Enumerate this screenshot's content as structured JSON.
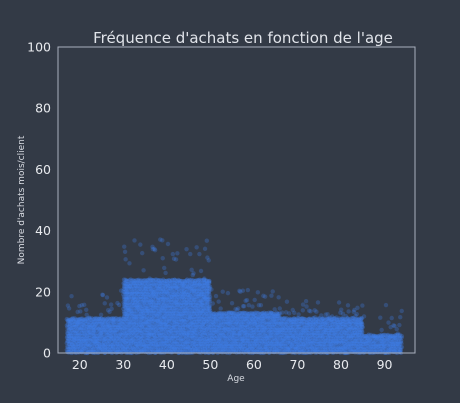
{
  "chart_data": {
    "type": "scatter",
    "title": "Fréquence d'achats en fonction de l'age",
    "xlabel": "Age",
    "ylabel": "Nombre d'achats mois/client",
    "xlim": [
      15,
      97
    ],
    "ylim": [
      0,
      100
    ],
    "xticks": [
      20,
      30,
      40,
      50,
      60,
      70,
      80,
      90
    ],
    "yticks": [
      0,
      20,
      40,
      60,
      80,
      100
    ],
    "grid": false,
    "point_color": "#3f7ee8",
    "bands": [
      {
        "age_range": [
          17,
          30
        ],
        "min": 0,
        "typical_max": 11,
        "max": 21
      },
      {
        "age_range": [
          30,
          50
        ],
        "min": 0,
        "typical_max": 24,
        "max": 38
      },
      {
        "age_range": [
          50,
          66
        ],
        "min": 0,
        "typical_max": 13,
        "max": 21
      },
      {
        "age_range": [
          66,
          85
        ],
        "min": 0,
        "typical_max": 11,
        "max": 17
      },
      {
        "age_range": [
          85,
          94
        ],
        "min": 0,
        "typical_max": 6,
        "max": 16
      }
    ]
  },
  "colors": {
    "background": "#333a46",
    "axes_frame": "#aab0bd",
    "text": "#e8eaee"
  }
}
